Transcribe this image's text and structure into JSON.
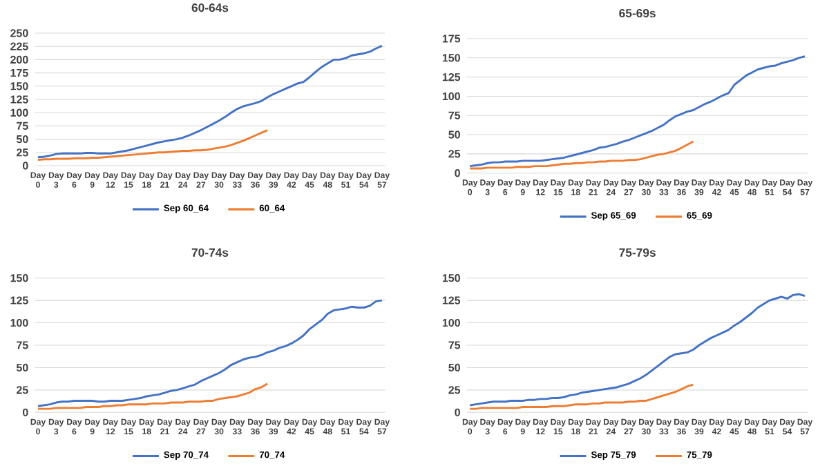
{
  "chart_data": [
    {
      "type": "line",
      "title": "60-64s",
      "categories": [
        "Day 0",
        null,
        null,
        "Day 3",
        null,
        null,
        "Day 6",
        null,
        null,
        "Day 9",
        null,
        null,
        "Day 12",
        null,
        null,
        "Day 15",
        null,
        null,
        "Day 18",
        null,
        null,
        "Day 21",
        null,
        null,
        "Day 24",
        null,
        null,
        "Day 27",
        null,
        null,
        "Day 30",
        null,
        null,
        "Day 33",
        null,
        null,
        "Day 36",
        null,
        null,
        "Day 39",
        null,
        null,
        "Day 42",
        null,
        null,
        "Day 45",
        null,
        null,
        "Day 48",
        null,
        null,
        "Day 51",
        null,
        null,
        "Day 54",
        null,
        null,
        "Day 57"
      ],
      "ylim": [
        0,
        250
      ],
      "yticks": [
        0,
        25,
        50,
        75,
        100,
        125,
        150,
        175,
        200,
        225,
        250
      ],
      "grid": "y",
      "legend": "bottom",
      "marker": "none",
      "series": [
        {
          "name": "Sep 60_64",
          "color": "#4472c4",
          "values": [
            16,
            17,
            19,
            22,
            23,
            23,
            23,
            23,
            24,
            24,
            23,
            23,
            23,
            25,
            27,
            29,
            32,
            35,
            38,
            41,
            44,
            46,
            48,
            50,
            53,
            57,
            62,
            67,
            73,
            79,
            85,
            92,
            100,
            107,
            112,
            115,
            118,
            122,
            129,
            135,
            140,
            145,
            150,
            155,
            158,
            167,
            177,
            186,
            193,
            200,
            200,
            203,
            208,
            210,
            212,
            215,
            221,
            226
          ]
        },
        {
          "name": "60_64",
          "color": "#ed7d31",
          "values": [
            11,
            12,
            12,
            13,
            13,
            13,
            14,
            14,
            14,
            15,
            15,
            16,
            17,
            18,
            19,
            20,
            21,
            22,
            23,
            24,
            25,
            25,
            26,
            27,
            28,
            28,
            29,
            29,
            30,
            32,
            34,
            36,
            39,
            43,
            47,
            52,
            57,
            62,
            67,
            null,
            null,
            null,
            null,
            null,
            null,
            null,
            null,
            null,
            null,
            null,
            null,
            null,
            null,
            null,
            null,
            null,
            null,
            null
          ]
        }
      ]
    },
    {
      "type": "line",
      "title": "65-69s",
      "categories": [
        "Day 0",
        null,
        null,
        "Day 3",
        null,
        null,
        "Day 6",
        null,
        null,
        "Day 9",
        null,
        null,
        "Day 12",
        null,
        null,
        "Day 15",
        null,
        null,
        "Day 18",
        null,
        null,
        "Day 21",
        null,
        null,
        "Day 24",
        null,
        null,
        "Day 27",
        null,
        null,
        "Day 30",
        null,
        null,
        "Day 33",
        null,
        null,
        "Day 36",
        null,
        null,
        "Day 39",
        null,
        null,
        "Day 42",
        null,
        null,
        "Day 45",
        null,
        null,
        "Day 48",
        null,
        null,
        "Day 51",
        null,
        null,
        "Day 54",
        null,
        null,
        "Day 57"
      ],
      "ylim": [
        0,
        175
      ],
      "yticks": [
        0,
        25,
        50,
        75,
        100,
        125,
        150,
        175
      ],
      "grid": "y",
      "legend": "bottom",
      "marker": "none",
      "series": [
        {
          "name": "Sep 65_69",
          "color": "#4472c4",
          "values": [
            9,
            10,
            11,
            13,
            14,
            14,
            15,
            15,
            15,
            16,
            16,
            16,
            16,
            17,
            18,
            19,
            20,
            22,
            24,
            26,
            28,
            30,
            33,
            34,
            36,
            38,
            41,
            43,
            46,
            49,
            52,
            55,
            59,
            63,
            69,
            74,
            77,
            80,
            82,
            86,
            90,
            93,
            97,
            101,
            104,
            115,
            121,
            127,
            131,
            135,
            137,
            139,
            140,
            143,
            145,
            147,
            150,
            152
          ]
        },
        {
          "name": "65_69",
          "color": "#ed7d31",
          "values": [
            6,
            6,
            6,
            7,
            7,
            7,
            7,
            7,
            8,
            8,
            8,
            9,
            9,
            9,
            10,
            11,
            12,
            12,
            13,
            13,
            14,
            14,
            15,
            15,
            16,
            16,
            16,
            17,
            17,
            18,
            20,
            22,
            24,
            25,
            27,
            29,
            33,
            37,
            41,
            null,
            null,
            null,
            null,
            null,
            null,
            null,
            null,
            null,
            null,
            null,
            null,
            null,
            null,
            null,
            null,
            null,
            null,
            null
          ]
        }
      ]
    },
    {
      "type": "line",
      "title": "70-74s",
      "categories": [
        "Day 0",
        null,
        null,
        "Day 3",
        null,
        null,
        "Day 6",
        null,
        null,
        "Day 9",
        null,
        null,
        "Day 12",
        null,
        null,
        "Day 15",
        null,
        null,
        "Day 18",
        null,
        null,
        "Day 21",
        null,
        null,
        "Day 24",
        null,
        null,
        "Day 27",
        null,
        null,
        "Day 30",
        null,
        null,
        "Day 33",
        null,
        null,
        "Day 36",
        null,
        null,
        "Day 39",
        null,
        null,
        "Day 42",
        null,
        null,
        "Day 45",
        null,
        null,
        "Day 48",
        null,
        null,
        "Day 51",
        null,
        null,
        "Day 54",
        null,
        null,
        "Day 57"
      ],
      "ylim": [
        0,
        150
      ],
      "yticks": [
        0,
        25,
        50,
        75,
        100,
        125,
        150
      ],
      "grid": "y",
      "legend": "bottom",
      "marker": "none",
      "series": [
        {
          "name": "Sep 70_74",
          "color": "#4472c4",
          "values": [
            7,
            8,
            9,
            11,
            12,
            12,
            13,
            13,
            13,
            13,
            12,
            12,
            13,
            13,
            13,
            14,
            15,
            16,
            18,
            19,
            20,
            22,
            24,
            25,
            27,
            29,
            31,
            35,
            38,
            41,
            44,
            48,
            53,
            56,
            59,
            61,
            62,
            64,
            67,
            69,
            72,
            74,
            77,
            81,
            86,
            93,
            98,
            103,
            110,
            114,
            115,
            116,
            118,
            117,
            117,
            119,
            124,
            125
          ]
        },
        {
          "name": "70_74",
          "color": "#ed7d31",
          "values": [
            4,
            4,
            4,
            5,
            5,
            5,
            5,
            5,
            6,
            6,
            6,
            7,
            7,
            8,
            8,
            9,
            9,
            9,
            9,
            10,
            10,
            10,
            11,
            11,
            11,
            12,
            12,
            12,
            13,
            13,
            15,
            16,
            17,
            18,
            20,
            22,
            26,
            28,
            32,
            null,
            null,
            null,
            null,
            null,
            null,
            null,
            null,
            null,
            null,
            null,
            null,
            null,
            null,
            null,
            null,
            null,
            null,
            null
          ]
        }
      ]
    },
    {
      "type": "line",
      "title": "75-79s",
      "categories": [
        "Day 0",
        null,
        null,
        "Day 3",
        null,
        null,
        "Day 6",
        null,
        null,
        "Day 9",
        null,
        null,
        "Day 12",
        null,
        null,
        "Day 15",
        null,
        null,
        "Day 18",
        null,
        null,
        "Day 21",
        null,
        null,
        "Day 24",
        null,
        null,
        "Day 27",
        null,
        null,
        "Day 30",
        null,
        null,
        "Day 33",
        null,
        null,
        "Day 36",
        null,
        null,
        "Day 39",
        null,
        null,
        "Day 42",
        null,
        null,
        "Day 45",
        null,
        null,
        "Day 48",
        null,
        null,
        "Day 51",
        null,
        null,
        "Day 54",
        null,
        null,
        "Day 57"
      ],
      "ylim": [
        0,
        150
      ],
      "yticks": [
        0,
        25,
        50,
        75,
        100,
        125,
        150
      ],
      "grid": "y",
      "legend": "bottom",
      "marker": "none",
      "series": [
        {
          "name": "Sep 75_79",
          "color": "#4472c4",
          "values": [
            8,
            9,
            10,
            11,
            12,
            12,
            12,
            13,
            13,
            13,
            14,
            14,
            15,
            15,
            16,
            16,
            17,
            19,
            20,
            22,
            23,
            24,
            25,
            26,
            27,
            28,
            30,
            32,
            35,
            38,
            42,
            47,
            52,
            57,
            62,
            65,
            66,
            67,
            70,
            75,
            79,
            83,
            86,
            89,
            92,
            97,
            101,
            106,
            111,
            117,
            121,
            125,
            127,
            129,
            127,
            131,
            132,
            130
          ]
        },
        {
          "name": "75_79",
          "color": "#ed7d31",
          "values": [
            4,
            4,
            5,
            5,
            5,
            5,
            5,
            5,
            5,
            6,
            6,
            6,
            6,
            6,
            7,
            7,
            7,
            8,
            9,
            9,
            9,
            10,
            10,
            11,
            11,
            11,
            11,
            12,
            12,
            13,
            13,
            15,
            17,
            19,
            21,
            23,
            26,
            29,
            31,
            null,
            null,
            null,
            null,
            null,
            null,
            null,
            null,
            null,
            null,
            null,
            null,
            null,
            null,
            null,
            null,
            null,
            null,
            null
          ]
        }
      ]
    }
  ]
}
